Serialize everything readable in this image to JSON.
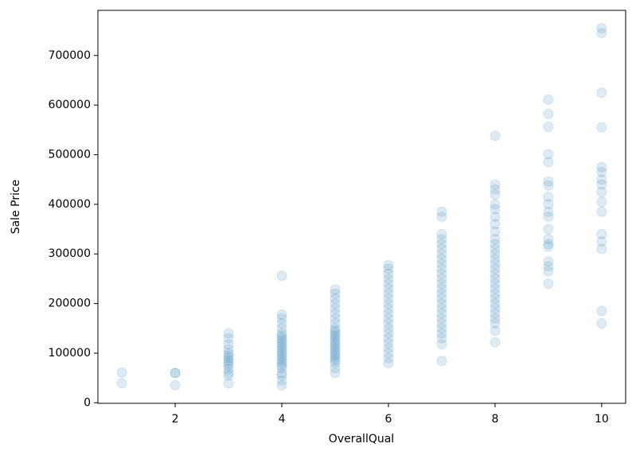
{
  "chart_data": {
    "type": "scatter",
    "x_label": "OverallQual",
    "y_label": "Sale Price",
    "color": "#1f77b4",
    "x": [
      1,
      1,
      2,
      2,
      2,
      3,
      3,
      3,
      3,
      3,
      3,
      3,
      3,
      3,
      3,
      3,
      3,
      3,
      3,
      4,
      4,
      4,
      4,
      4,
      4,
      4,
      4,
      4,
      4,
      4,
      4,
      4,
      4,
      4,
      4,
      4,
      4,
      4,
      4,
      4,
      4,
      4,
      4,
      5,
      5,
      5,
      5,
      5,
      5,
      5,
      5,
      5,
      5,
      5,
      5,
      5,
      5,
      5,
      5,
      5,
      5,
      5,
      5,
      5,
      5,
      5,
      5,
      5,
      6,
      6,
      6,
      6,
      6,
      6,
      6,
      6,
      6,
      6,
      6,
      6,
      6,
      6,
      6,
      6,
      6,
      6,
      6,
      6,
      6,
      7,
      7,
      7,
      7,
      7,
      7,
      7,
      7,
      7,
      7,
      7,
      7,
      7,
      7,
      7,
      7,
      7,
      7,
      7,
      7,
      7,
      7,
      7,
      7,
      7,
      7,
      8,
      8,
      8,
      8,
      8,
      8,
      8,
      8,
      8,
      8,
      8,
      8,
      8,
      8,
      8,
      8,
      8,
      8,
      8,
      8,
      8,
      8,
      8,
      8,
      8,
      8,
      8,
      8,
      8,
      9,
      9,
      9,
      9,
      9,
      9,
      9,
      9,
      9,
      9,
      9,
      9,
      9,
      9,
      9,
      9,
      9,
      9,
      9,
      10,
      10,
      10,
      10,
      10,
      10,
      10,
      10,
      10,
      10,
      10,
      10,
      10,
      10,
      10,
      10
    ],
    "y": [
      61000,
      39300,
      60000,
      60000,
      35300,
      139600,
      130000,
      118000,
      108000,
      100000,
      95000,
      90000,
      85000,
      80000,
      75000,
      68000,
      60000,
      55000,
      39000,
      256000,
      178000,
      170000,
      160000,
      150000,
      140000,
      135000,
      130000,
      125000,
      120000,
      115000,
      110000,
      105000,
      100000,
      95000,
      90000,
      85000,
      80000,
      75000,
      70000,
      60000,
      55000,
      45000,
      34900,
      228000,
      220000,
      210000,
      200000,
      190000,
      180000,
      170000,
      160000,
      150000,
      145000,
      140000,
      135000,
      130000,
      125000,
      120000,
      115000,
      110000,
      105000,
      100000,
      95000,
      90000,
      85000,
      80000,
      70000,
      60000,
      277000,
      270000,
      260000,
      250000,
      240000,
      230000,
      220000,
      210000,
      200000,
      190000,
      180000,
      170000,
      160000,
      150000,
      140000,
      130000,
      120000,
      110000,
      100000,
      90000,
      80000,
      385000,
      375000,
      340000,
      330000,
      320000,
      310000,
      300000,
      290000,
      280000,
      270000,
      260000,
      250000,
      240000,
      230000,
      220000,
      210000,
      200000,
      190000,
      180000,
      170000,
      160000,
      150000,
      140000,
      130000,
      118000,
      84000,
      538000,
      440000,
      430000,
      420000,
      400000,
      390000,
      375000,
      360000,
      345000,
      330000,
      320000,
      310000,
      300000,
      290000,
      280000,
      270000,
      260000,
      250000,
      240000,
      230000,
      220000,
      210000,
      200000,
      190000,
      180000,
      170000,
      160000,
      145000,
      122000,
      611000,
      582000,
      556000,
      501000,
      485000,
      446000,
      438000,
      415000,
      400000,
      385000,
      375000,
      350000,
      330000,
      320000,
      315000,
      285000,
      275000,
      265000,
      240000,
      755000,
      745000,
      625000,
      555000,
      475000,
      465000,
      450000,
      440000,
      425000,
      405000,
      385000,
      340000,
      325000,
      310000,
      185000,
      160000
    ],
    "xlim": [
      0.55,
      10.45
    ],
    "ylim": [
      -1100,
      791000
    ],
    "xticks": [
      2,
      4,
      6,
      8,
      10
    ],
    "yticks": [
      0,
      100000,
      200000,
      300000,
      400000,
      500000,
      600000,
      700000
    ]
  }
}
